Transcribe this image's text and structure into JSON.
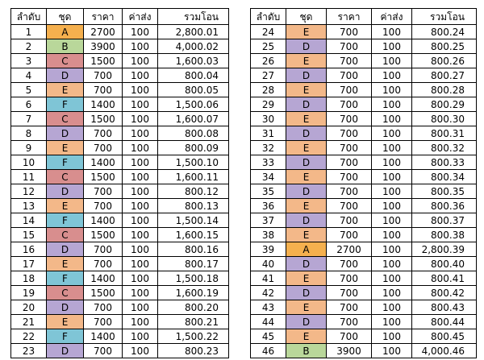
{
  "headers": {
    "order": "ลำดับ",
    "set": "ชุด",
    "price": "ราคา",
    "shipping": "ค่าส่ง",
    "total": "รวมโอน"
  },
  "set_colors": {
    "A": "#f5b04e",
    "B": "#b9d79a",
    "C": "#d88e8e",
    "D": "#b6a6d3",
    "E": "#f3b889",
    "F": "#7fc5d6"
  },
  "left_rows": [
    {
      "order": "1",
      "set": "A",
      "price": "2700",
      "shipping": "100",
      "total": "2,800.01"
    },
    {
      "order": "2",
      "set": "B",
      "price": "3900",
      "shipping": "100",
      "total": "4,000.02"
    },
    {
      "order": "3",
      "set": "C",
      "price": "1500",
      "shipping": "100",
      "total": "1,600.03"
    },
    {
      "order": "4",
      "set": "D",
      "price": "700",
      "shipping": "100",
      "total": "800.04"
    },
    {
      "order": "5",
      "set": "E",
      "price": "700",
      "shipping": "100",
      "total": "800.05"
    },
    {
      "order": "6",
      "set": "F",
      "price": "1400",
      "shipping": "100",
      "total": "1,500.06"
    },
    {
      "order": "7",
      "set": "C",
      "price": "1500",
      "shipping": "100",
      "total": "1,600.07"
    },
    {
      "order": "8",
      "set": "D",
      "price": "700",
      "shipping": "100",
      "total": "800.08"
    },
    {
      "order": "9",
      "set": "E",
      "price": "700",
      "shipping": "100",
      "total": "800.09"
    },
    {
      "order": "10",
      "set": "F",
      "price": "1400",
      "shipping": "100",
      "total": "1,500.10"
    },
    {
      "order": "11",
      "set": "C",
      "price": "1500",
      "shipping": "100",
      "total": "1,600.11"
    },
    {
      "order": "12",
      "set": "D",
      "price": "700",
      "shipping": "100",
      "total": "800.12"
    },
    {
      "order": "13",
      "set": "E",
      "price": "700",
      "shipping": "100",
      "total": "800.13"
    },
    {
      "order": "14",
      "set": "F",
      "price": "1400",
      "shipping": "100",
      "total": "1,500.14"
    },
    {
      "order": "15",
      "set": "C",
      "price": "1500",
      "shipping": "100",
      "total": "1,600.15"
    },
    {
      "order": "16",
      "set": "D",
      "price": "700",
      "shipping": "100",
      "total": "800.16"
    },
    {
      "order": "17",
      "set": "E",
      "price": "700",
      "shipping": "100",
      "total": "800.17"
    },
    {
      "order": "18",
      "set": "F",
      "price": "1400",
      "shipping": "100",
      "total": "1,500.18"
    },
    {
      "order": "19",
      "set": "C",
      "price": "1500",
      "shipping": "100",
      "total": "1,600.19"
    },
    {
      "order": "20",
      "set": "D",
      "price": "700",
      "shipping": "100",
      "total": "800.20"
    },
    {
      "order": "21",
      "set": "E",
      "price": "700",
      "shipping": "100",
      "total": "800.21"
    },
    {
      "order": "22",
      "set": "F",
      "price": "1400",
      "shipping": "100",
      "total": "1,500.22"
    },
    {
      "order": "23",
      "set": "D",
      "price": "700",
      "shipping": "100",
      "total": "800.23"
    }
  ],
  "right_rows": [
    {
      "order": "24",
      "set": "E",
      "price": "700",
      "shipping": "100",
      "total": "800.24"
    },
    {
      "order": "25",
      "set": "D",
      "price": "700",
      "shipping": "100",
      "total": "800.25"
    },
    {
      "order": "26",
      "set": "E",
      "price": "700",
      "shipping": "100",
      "total": "800.26"
    },
    {
      "order": "27",
      "set": "D",
      "price": "700",
      "shipping": "100",
      "total": "800.27"
    },
    {
      "order": "28",
      "set": "E",
      "price": "700",
      "shipping": "100",
      "total": "800.28"
    },
    {
      "order": "29",
      "set": "D",
      "price": "700",
      "shipping": "100",
      "total": "800.29"
    },
    {
      "order": "30",
      "set": "E",
      "price": "700",
      "shipping": "100",
      "total": "800.30"
    },
    {
      "order": "31",
      "set": "D",
      "price": "700",
      "shipping": "100",
      "total": "800.31"
    },
    {
      "order": "32",
      "set": "E",
      "price": "700",
      "shipping": "100",
      "total": "800.32"
    },
    {
      "order": "33",
      "set": "D",
      "price": "700",
      "shipping": "100",
      "total": "800.33"
    },
    {
      "order": "34",
      "set": "E",
      "price": "700",
      "shipping": "100",
      "total": "800.34"
    },
    {
      "order": "35",
      "set": "D",
      "price": "700",
      "shipping": "100",
      "total": "800.35"
    },
    {
      "order": "36",
      "set": "E",
      "price": "700",
      "shipping": "100",
      "total": "800.36"
    },
    {
      "order": "37",
      "set": "D",
      "price": "700",
      "shipping": "100",
      "total": "800.37"
    },
    {
      "order": "38",
      "set": "E",
      "price": "700",
      "shipping": "100",
      "total": "800.38"
    },
    {
      "order": "39",
      "set": "A",
      "price": "2700",
      "shipping": "100",
      "total": "2,800.39"
    },
    {
      "order": "40",
      "set": "D",
      "price": "700",
      "shipping": "100",
      "total": "800.40"
    },
    {
      "order": "41",
      "set": "E",
      "price": "700",
      "shipping": "100",
      "total": "800.41"
    },
    {
      "order": "42",
      "set": "D",
      "price": "700",
      "shipping": "100",
      "total": "800.42"
    },
    {
      "order": "43",
      "set": "E",
      "price": "700",
      "shipping": "100",
      "total": "800.43"
    },
    {
      "order": "44",
      "set": "D",
      "price": "700",
      "shipping": "100",
      "total": "800.44"
    },
    {
      "order": "45",
      "set": "E",
      "price": "700",
      "shipping": "100",
      "total": "800.45"
    },
    {
      "order": "46",
      "set": "B",
      "price": "3900",
      "shipping": "100",
      "total": "4,000.46"
    }
  ]
}
